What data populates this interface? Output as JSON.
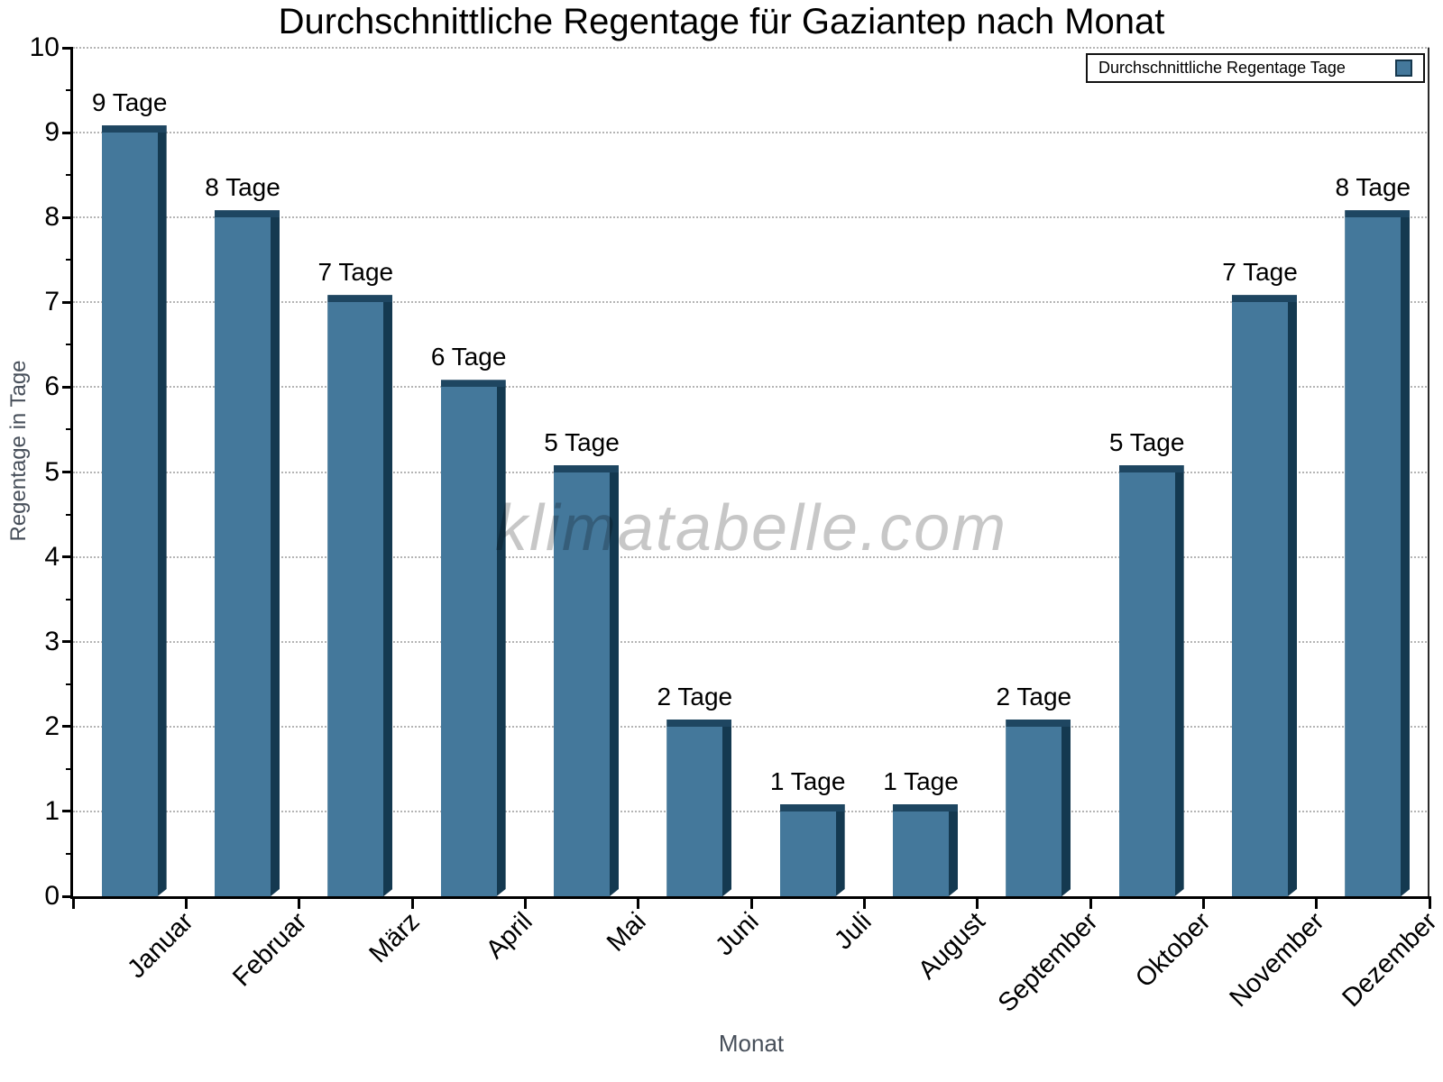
{
  "chart_data": {
    "type": "bar",
    "title": "Durchschnittliche Regentage für Gaziantep nach Monat",
    "xlabel": "Monat",
    "ylabel": "Regentage in Tage",
    "categories": [
      "Januar",
      "Februar",
      "März",
      "April",
      "Mai",
      "Juni",
      "Juli",
      "August",
      "September",
      "Oktober",
      "November",
      "Dezember"
    ],
    "series": [
      {
        "name": "Durchschnittliche Regentage Tage",
        "values": [
          9,
          8,
          7,
          6,
          5,
          2,
          1,
          1,
          2,
          5,
          7,
          8
        ]
      }
    ],
    "bar_labels": [
      "9 Tage",
      "8 Tage",
      "7 Tage",
      "6 Tage",
      "5 Tage",
      "2 Tage",
      "1 Tage",
      "1 Tage",
      "2 Tage",
      "5 Tage",
      "7 Tage",
      "8 Tage"
    ],
    "ylim": [
      0,
      10
    ],
    "y_ticks": [
      0,
      1,
      2,
      3,
      4,
      5,
      6,
      7,
      8,
      9,
      10
    ],
    "y_minor_tick_step": 0.5,
    "grid": "horizontal-dotted",
    "legend_position": "top-right",
    "watermark": "klimatabelle.com",
    "colors": {
      "bar_front": "#44789b",
      "bar_top": "#1e4661",
      "bar_side": "#143950",
      "grid": "#b4b4b4",
      "axis": "#000000",
      "axis_title_gray": "#474f5a",
      "watermark": "rgba(0,0,0,0.22)"
    }
  }
}
